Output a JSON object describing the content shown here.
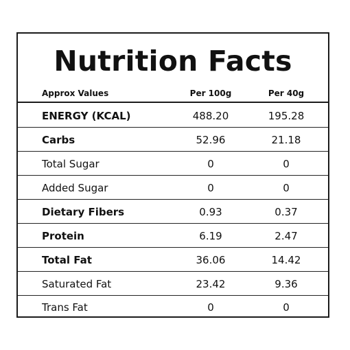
{
  "title": "Nutrition Facts",
  "header": {
    "label": "Approx Values",
    "col1": "Per 100g",
    "col2": "Per 40g"
  },
  "rows": [
    {
      "name": "ENERGY (KCAL)",
      "per100g": "488.20",
      "per40g": "195.28",
      "bold": true
    },
    {
      "name": "Carbs",
      "per100g": "52.96",
      "per40g": "21.18",
      "bold": true
    },
    {
      "name": "Total Sugar",
      "per100g": "0",
      "per40g": "0",
      "bold": false
    },
    {
      "name": "Added Sugar",
      "per100g": "0",
      "per40g": "0",
      "bold": false
    },
    {
      "name": "Dietary Fibers",
      "per100g": "0.93",
      "per40g": "0.37",
      "bold": true
    },
    {
      "name": "Protein",
      "per100g": "6.19",
      "per40g": "2.47",
      "bold": true
    },
    {
      "name": "Total Fat",
      "per100g": "36.06",
      "per40g": "14.42",
      "bold": true
    },
    {
      "name": "Saturated Fat",
      "per100g": "23.42",
      "per40g": "9.36",
      "bold": false
    },
    {
      "name": "Trans Fat",
      "per100g": "0",
      "per40g": "0",
      "bold": false
    }
  ]
}
